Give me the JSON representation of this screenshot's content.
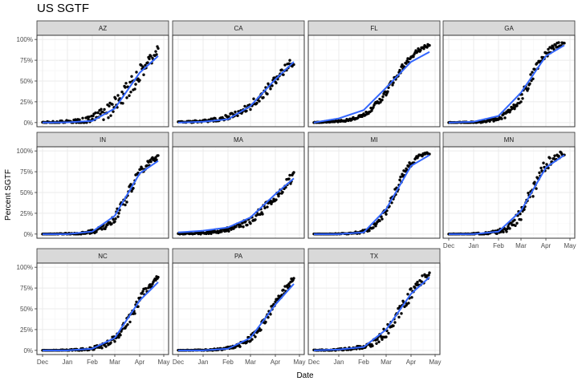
{
  "chart_data": {
    "type": "scatter",
    "title": "US SGTF",
    "xlabel": "Date",
    "ylabel": "Percent SGTF",
    "x_ticks": [
      "Dec",
      "Jan",
      "Feb",
      "Mar",
      "Apr",
      "May"
    ],
    "x_tick_dates": [
      "2020-12-01",
      "2021-01-01",
      "2021-02-01",
      "2021-03-01",
      "2021-04-01",
      "2021-05-01"
    ],
    "xlim": [
      "2020-11-24",
      "2021-05-07"
    ],
    "y_ticks": [
      "0%",
      "25%",
      "50%",
      "75%",
      "100%"
    ],
    "y_tick_values": [
      0,
      0.25,
      0.5,
      0.75,
      1.0
    ],
    "ylim": [
      -0.05,
      1.05
    ],
    "grid": true,
    "facets": [
      {
        "state": "AZ",
        "date_range": [
          "2020-12-01",
          "2021-04-24"
        ],
        "mid": "2021-03-25",
        "k": 0.056,
        "noise": 0.12,
        "seed": 1,
        "curve": [
          [
            "2020-12-01",
            0.0
          ],
          [
            "2021-01-01",
            0.003
          ],
          [
            "2021-02-01",
            0.02
          ],
          [
            "2021-03-01",
            0.17
          ],
          [
            "2021-04-01",
            0.6
          ],
          [
            "2021-04-24",
            0.8
          ]
        ]
      },
      {
        "state": "CA",
        "date_range": [
          "2020-12-01",
          "2021-04-24"
        ],
        "mid": "2021-03-31",
        "k": 0.045,
        "noise": 0.06,
        "seed": 2,
        "curve": [
          [
            "2020-12-01",
            0.0
          ],
          [
            "2021-01-01",
            0.01
          ],
          [
            "2021-02-01",
            0.04
          ],
          [
            "2021-03-01",
            0.2
          ],
          [
            "2021-04-01",
            0.52
          ],
          [
            "2021-04-24",
            0.73
          ]
        ]
      },
      {
        "state": "FL",
        "date_range": [
          "2020-12-01",
          "2021-04-24"
        ],
        "mid": "2021-03-10",
        "k": 0.06,
        "noise": 0.04,
        "seed": 3,
        "curve": [
          [
            "2020-12-01",
            0.0
          ],
          [
            "2021-01-01",
            0.05
          ],
          [
            "2021-02-01",
            0.15
          ],
          [
            "2021-03-01",
            0.42
          ],
          [
            "2021-04-01",
            0.73
          ],
          [
            "2021-04-24",
            0.85
          ]
        ]
      },
      {
        "state": "GA",
        "date_range": [
          "2020-12-01",
          "2021-04-24"
        ],
        "mid": "2021-03-12",
        "k": 0.075,
        "noise": 0.06,
        "seed": 4,
        "curve": [
          [
            "2020-12-01",
            0.0
          ],
          [
            "2021-01-01",
            0.01
          ],
          [
            "2021-02-01",
            0.08
          ],
          [
            "2021-03-01",
            0.36
          ],
          [
            "2021-04-01",
            0.8
          ],
          [
            "2021-04-24",
            0.93
          ]
        ]
      },
      {
        "state": "IN",
        "date_range": [
          "2020-12-01",
          "2021-04-24"
        ],
        "mid": "2021-03-19",
        "k": 0.075,
        "noise": 0.07,
        "seed": 5,
        "curve": [
          [
            "2020-12-01",
            0.0
          ],
          [
            "2021-01-01",
            0.0
          ],
          [
            "2021-02-01",
            0.03
          ],
          [
            "2021-03-01",
            0.22
          ],
          [
            "2021-04-01",
            0.73
          ],
          [
            "2021-04-24",
            0.88
          ]
        ]
      },
      {
        "state": "MA",
        "date_range": [
          "2020-12-01",
          "2021-04-24"
        ],
        "mid": "2021-04-05",
        "k": 0.045,
        "noise": 0.06,
        "seed": 6,
        "curve": [
          [
            "2020-12-01",
            0.02
          ],
          [
            "2021-01-01",
            0.04
          ],
          [
            "2021-02-01",
            0.08
          ],
          [
            "2021-03-01",
            0.2
          ],
          [
            "2021-04-01",
            0.48
          ],
          [
            "2021-04-24",
            0.67
          ]
        ]
      },
      {
        "state": "MI",
        "date_range": [
          "2020-12-01",
          "2021-04-24"
        ],
        "mid": "2021-03-12",
        "k": 0.085,
        "noise": 0.05,
        "seed": 7,
        "curve": [
          [
            "2020-12-01",
            0.0
          ],
          [
            "2021-01-01",
            0.0
          ],
          [
            "2021-02-01",
            0.02
          ],
          [
            "2021-03-01",
            0.3
          ],
          [
            "2021-04-01",
            0.82
          ],
          [
            "2021-04-24",
            0.95
          ]
        ]
      },
      {
        "state": "MN",
        "date_range": [
          "2020-12-01",
          "2021-04-24"
        ],
        "mid": "2021-03-14",
        "k": 0.085,
        "noise": 0.09,
        "seed": 8,
        "curve": [
          [
            "2020-12-01",
            0.0
          ],
          [
            "2021-01-01",
            0.0
          ],
          [
            "2021-02-01",
            0.03
          ],
          [
            "2021-03-01",
            0.28
          ],
          [
            "2021-04-01",
            0.8
          ],
          [
            "2021-04-24",
            0.95
          ]
        ]
      },
      {
        "state": "NC",
        "date_range": [
          "2020-12-01",
          "2021-04-24"
        ],
        "mid": "2021-03-26",
        "k": 0.07,
        "noise": 0.06,
        "seed": 9,
        "curve": [
          [
            "2020-12-01",
            0.0
          ],
          [
            "2021-01-01",
            0.0
          ],
          [
            "2021-02-01",
            0.02
          ],
          [
            "2021-03-01",
            0.15
          ],
          [
            "2021-04-01",
            0.6
          ],
          [
            "2021-04-24",
            0.82
          ]
        ]
      },
      {
        "state": "PA",
        "date_range": [
          "2020-12-01",
          "2021-04-24"
        ],
        "mid": "2021-03-28",
        "k": 0.065,
        "noise": 0.05,
        "seed": 10,
        "curve": [
          [
            "2020-12-01",
            0.0
          ],
          [
            "2021-01-01",
            0.0
          ],
          [
            "2021-02-01",
            0.02
          ],
          [
            "2021-03-01",
            0.15
          ],
          [
            "2021-04-01",
            0.55
          ],
          [
            "2021-04-24",
            0.8
          ]
        ]
      },
      {
        "state": "TX",
        "date_range": [
          "2020-12-01",
          "2021-04-24"
        ],
        "mid": "2021-03-20",
        "k": 0.065,
        "noise": 0.08,
        "seed": 11,
        "curve": [
          [
            "2020-12-01",
            0.0
          ],
          [
            "2021-01-01",
            0.01
          ],
          [
            "2021-02-01",
            0.04
          ],
          [
            "2021-03-01",
            0.25
          ],
          [
            "2021-04-01",
            0.68
          ],
          [
            "2021-04-24",
            0.88
          ]
        ]
      }
    ],
    "colors": {
      "points": "#000000",
      "fit_line": "#3366FF",
      "strip_fill": "#d9d9d9",
      "panel_border": "#333333",
      "grid_major": "#ebebeb",
      "grid_minor": "#f5f5f5"
    }
  }
}
